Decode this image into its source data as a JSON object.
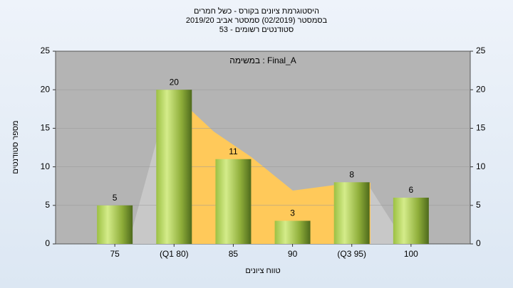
{
  "chart_data": {
    "type": "bar",
    "title": "היסטוגרמת ציונים בקורס - כשל חמרים",
    "subtitle": [
      "בסמסטר  (02/2019)  סמסטר אביב 2019/20",
      "סטודנטים רשומים - 53"
    ],
    "annotation": "במשימה : Final_A",
    "x_label": "טווח ציונים",
    "y_label": "מספר סטודנטים",
    "categories": [
      "75",
      "(Q1 80)",
      "85",
      "90",
      "(Q3 95)",
      "100"
    ],
    "values": [
      5,
      20,
      11,
      3,
      8,
      6
    ],
    "ylim": [
      0,
      25
    ],
    "yticks": [
      0,
      5,
      10,
      15,
      20,
      25
    ],
    "y2lim": [
      0,
      25
    ],
    "y2ticks": [
      0,
      5,
      10,
      15,
      20,
      25
    ],
    "grid": true
  }
}
